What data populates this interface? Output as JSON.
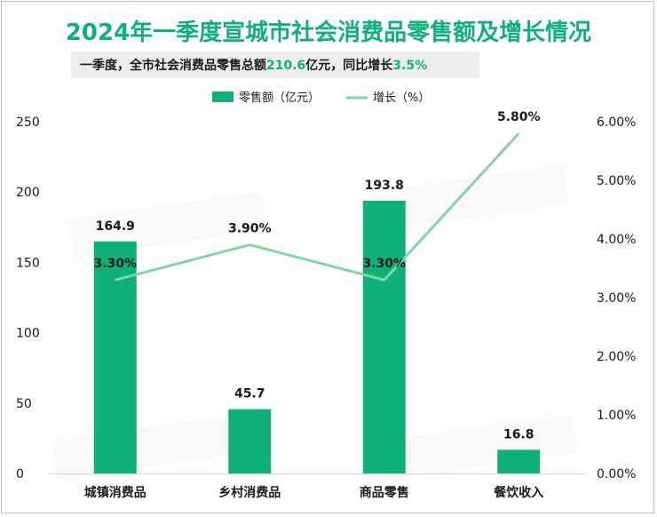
{
  "title": "2024年一季度宣城市社会消费品零售额及增长情况",
  "subtitle": {
    "prefix": "一季度，全市社会消费品零售总额",
    "total_value": "210.6",
    "middle": "亿元，同比增长",
    "growth_value": "3.5%"
  },
  "colors": {
    "title": "#10b07a",
    "bar": "#10b07a",
    "line": "#7fd6a4",
    "highlight": "#10b07a"
  },
  "chart_data": {
    "type": "bar",
    "categories": [
      "城镇消费品",
      "乡村消费品",
      "商品零售",
      "餐饮收入"
    ],
    "series": [
      {
        "name": "零售额（亿元）",
        "type": "bar",
        "axis": "left",
        "values": [
          164.9,
          45.7,
          193.8,
          16.8
        ],
        "labels": [
          "164.9",
          "45.7",
          "193.8",
          "16.8"
        ]
      },
      {
        "name": "增长（%）",
        "type": "line",
        "axis": "right",
        "values": [
          3.3,
          3.9,
          3.3,
          5.8
        ],
        "labels": [
          "3.30%",
          "3.90%",
          "3.30%",
          "5.80%"
        ]
      }
    ],
    "y_left": {
      "min": 0,
      "max": 250,
      "ticks": [
        "0",
        "50",
        "100",
        "150",
        "200",
        "250"
      ]
    },
    "y_right": {
      "min": 0,
      "max": 6,
      "ticks": [
        "0.00%",
        "1.00%",
        "2.00%",
        "3.00%",
        "4.00%",
        "5.00%",
        "6.00%"
      ]
    },
    "legend_position": "top",
    "grid": false
  }
}
